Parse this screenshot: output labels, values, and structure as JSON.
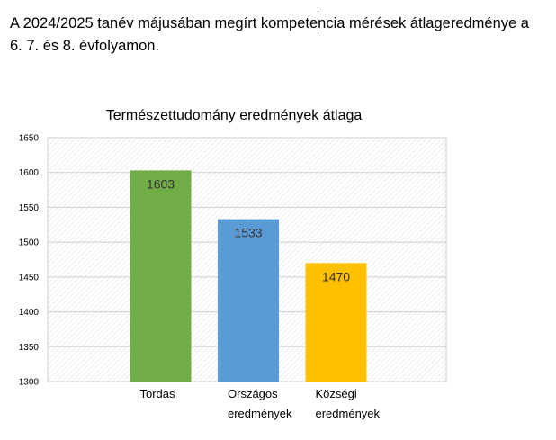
{
  "document": {
    "paragraph_before_cursor": "A 2024/2025 tanév májusában megírt kompete",
    "paragraph_after_cursor": "ncia mérések átlageredménye a",
    "paragraph_line2": "6. 7. és 8. évfolyamon."
  },
  "chart_data": {
    "type": "bar",
    "title": "Természettudomány eredmények átlaga",
    "categories": [
      [
        "Tordas"
      ],
      [
        "Országos",
        "eredmények"
      ],
      [
        "Községi",
        "eredmények"
      ]
    ],
    "values": [
      1603,
      1533,
      1470
    ],
    "data_labels": [
      "1603",
      "1533",
      "1470"
    ],
    "bar_colors": [
      "#70ad47",
      "#5b9bd5",
      "#ffc000"
    ],
    "ylim": [
      1300,
      1650
    ],
    "yticks": [
      1300,
      1350,
      1400,
      1450,
      1500,
      1550,
      1600,
      1650
    ],
    "ytick_labels": [
      "1300",
      "1350",
      "1400",
      "1450",
      "1500",
      "1550",
      "1600",
      "1650"
    ],
    "grid": true,
    "xlabel": "",
    "ylabel": ""
  }
}
